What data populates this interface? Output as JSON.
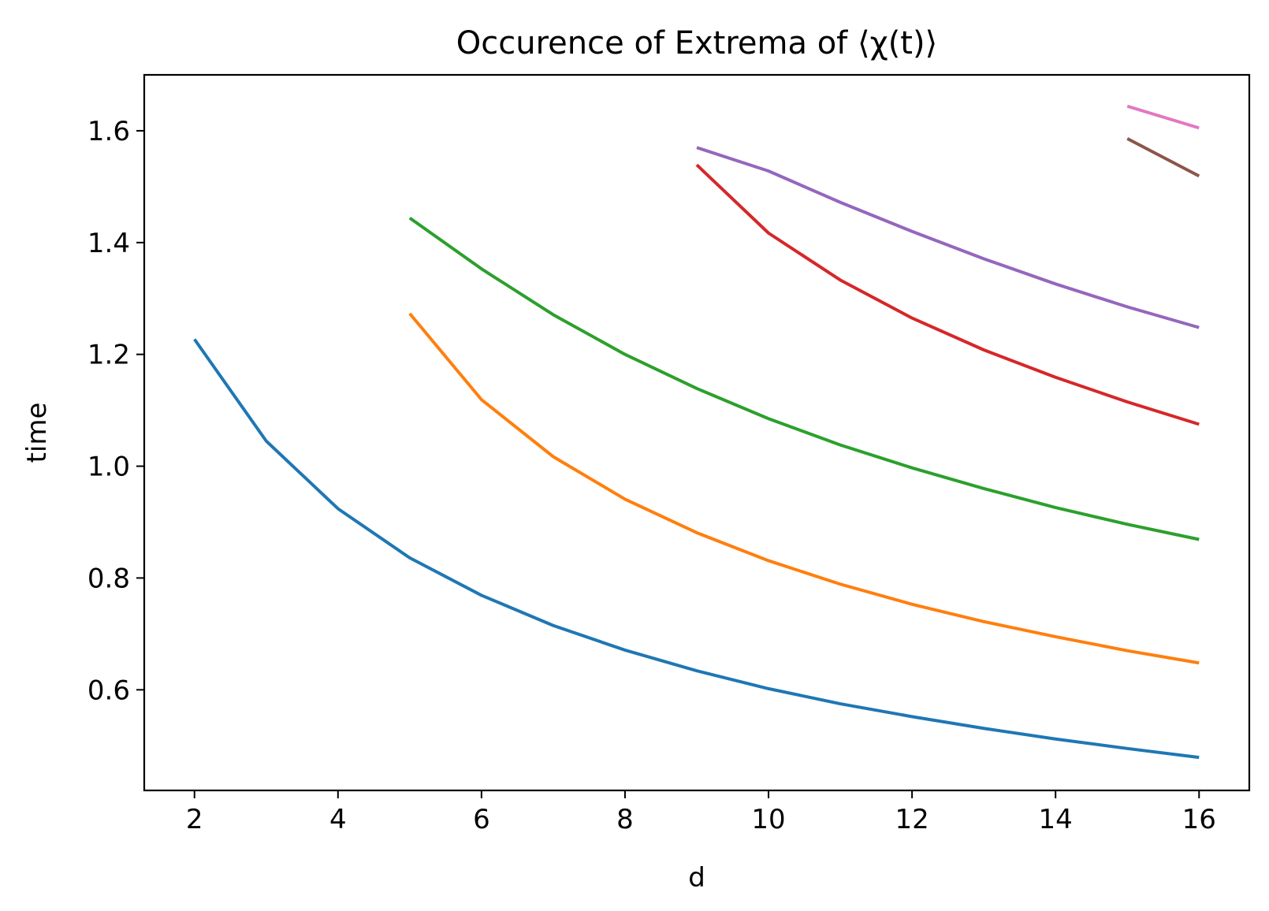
{
  "chart_data": {
    "type": "line",
    "title": "Occurence of Extrema of ⟨χ(t)⟩",
    "xlabel": "d",
    "ylabel": "time",
    "xlim": [
      1.3,
      16.7
    ],
    "ylim": [
      0.42,
      1.7
    ],
    "xticks": [
      2,
      4,
      6,
      8,
      10,
      12,
      14,
      16
    ],
    "yticks": [
      0.6,
      0.8,
      1.0,
      1.2,
      1.4,
      1.6
    ],
    "grid": false,
    "legend": "none",
    "series": [
      {
        "color": "#1f77b4",
        "x": [
          2,
          3,
          4,
          5,
          6,
          7,
          8,
          9,
          10,
          11,
          12,
          13,
          14,
          15,
          16
        ],
        "values": [
          1.227,
          1.045,
          0.924,
          0.836,
          0.769,
          0.715,
          0.671,
          0.634,
          0.602,
          0.575,
          0.552,
          0.531,
          0.512,
          0.495,
          0.479
        ]
      },
      {
        "color": "#ff7f0e",
        "x": [
          5,
          6,
          7,
          8,
          9,
          10,
          11,
          12,
          13,
          14,
          15,
          16
        ],
        "values": [
          1.273,
          1.119,
          1.017,
          0.941,
          0.881,
          0.831,
          0.789,
          0.753,
          0.722,
          0.695,
          0.67,
          0.648
        ]
      },
      {
        "color": "#2ca02c",
        "x": [
          5,
          6,
          7,
          8,
          9,
          10,
          11,
          12,
          13,
          14,
          15,
          16
        ],
        "values": [
          1.444,
          1.353,
          1.271,
          1.2,
          1.139,
          1.085,
          1.038,
          0.997,
          0.96,
          0.926,
          0.896,
          0.869
        ]
      },
      {
        "color": "#d62728",
        "x": [
          9,
          10,
          11,
          12,
          13,
          14,
          15,
          16
        ],
        "values": [
          1.539,
          1.417,
          1.333,
          1.265,
          1.208,
          1.159,
          1.115,
          1.075
        ]
      },
      {
        "color": "#9467bd",
        "x": [
          9,
          10,
          11,
          12,
          13,
          14,
          15,
          16
        ],
        "values": [
          1.57,
          1.528,
          1.472,
          1.42,
          1.371,
          1.326,
          1.285,
          1.248
        ]
      },
      {
        "color": "#8c564b",
        "x": [
          15,
          16
        ],
        "values": [
          1.586,
          1.519
        ]
      },
      {
        "color": "#e377c2",
        "x": [
          15,
          16
        ],
        "values": [
          1.644,
          1.605
        ]
      }
    ]
  }
}
